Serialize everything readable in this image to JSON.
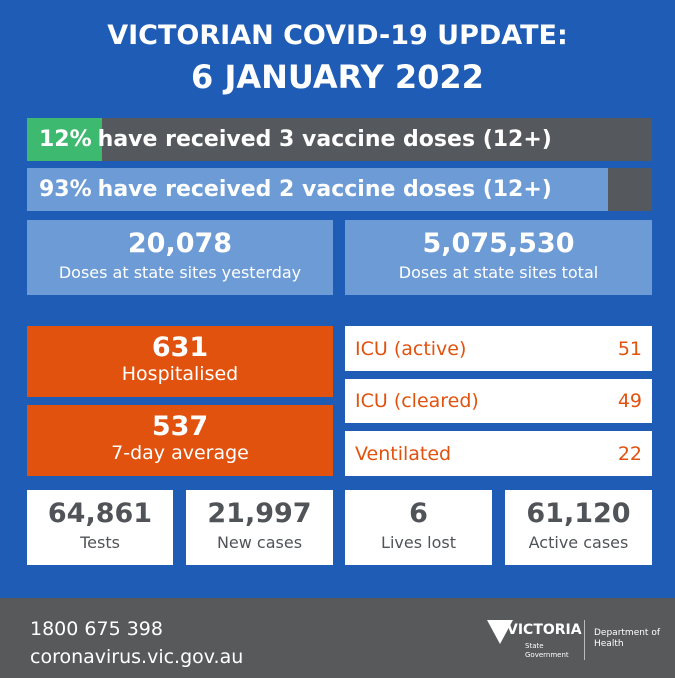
{
  "header": {
    "title": "VICTORIAN COVID-19 UPDATE:",
    "date": "6 JANUARY 2022"
  },
  "vaccination": [
    {
      "percent": {
        "value": 12,
        "label": "12%"
      },
      "text": "have received 3 vaccine doses (12+)",
      "color": "#3dba6f"
    },
    {
      "percent": {
        "value": 93,
        "label": "93%"
      },
      "text": "have received 2 vaccine doses (12+)",
      "color": "#6d9bd5"
    }
  ],
  "doses": [
    {
      "value": "20,078",
      "label": "Doses at state sites yesterday"
    },
    {
      "value": "5,075,530",
      "label": "Doses at state sites total"
    }
  ],
  "hospital": [
    {
      "value": 631,
      "label": "Hospitalised"
    },
    {
      "value": 537,
      "label": "7-day average"
    }
  ],
  "icu": [
    {
      "label": "ICU (active)",
      "value": 51
    },
    {
      "label": "ICU (cleared)",
      "value": 49
    },
    {
      "label": "Ventilated",
      "value": 22
    }
  ],
  "stats": [
    {
      "value": "64,861",
      "label": "Tests"
    },
    {
      "value": "21,997",
      "label": "New cases"
    },
    {
      "value": 6,
      "label": "Lives lost"
    },
    {
      "value": "61,120",
      "label": "Active cases"
    }
  ],
  "footer": {
    "phone": "1800 675 398",
    "website": "coronavirus.vic.gov.au",
    "logo": "VICTORIA",
    "logo_sub": "State Government",
    "department": "Department of Health"
  }
}
